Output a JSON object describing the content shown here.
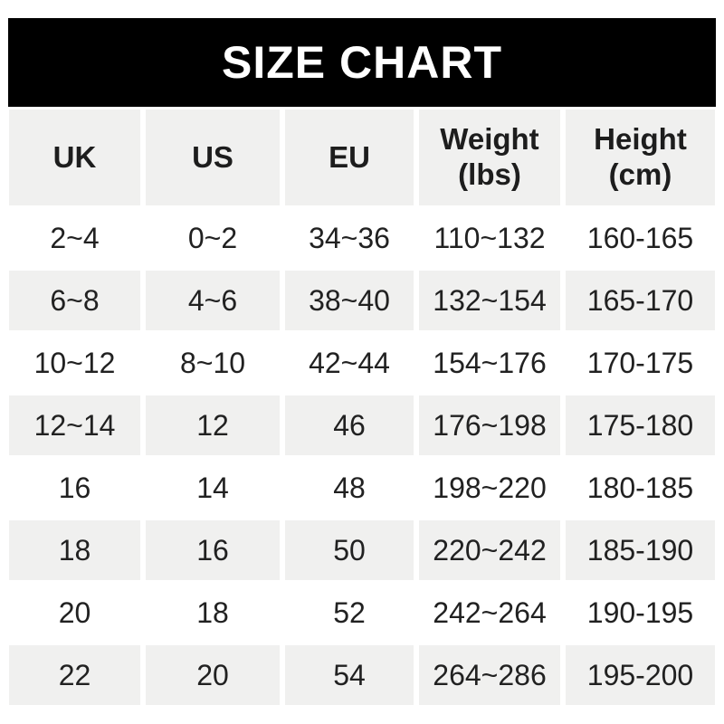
{
  "title": "SIZE CHART",
  "colors": {
    "banner_bg": "#000000",
    "banner_text": "#ffffff",
    "row_alt_bg": "#f0f0ef",
    "row_bg": "#ffffff",
    "text": "#212121",
    "page_bg": "#ffffff"
  },
  "table": {
    "headers": [
      {
        "key": "uk",
        "label": "UK",
        "unit": ""
      },
      {
        "key": "us",
        "label": "US",
        "unit": ""
      },
      {
        "key": "eu",
        "label": "EU",
        "unit": ""
      },
      {
        "key": "weight",
        "label": "Weight",
        "unit": "(lbs)"
      },
      {
        "key": "height",
        "label": "Height",
        "unit": "(cm)"
      }
    ],
    "rows": [
      [
        "2~4",
        "0~2",
        "34~36",
        "110~132",
        "160-165"
      ],
      [
        "6~8",
        "4~6",
        "38~40",
        "132~154",
        "165-170"
      ],
      [
        "10~12",
        "8~10",
        "42~44",
        "154~176",
        "170-175"
      ],
      [
        "12~14",
        "12",
        "46",
        "176~198",
        "175-180"
      ],
      [
        "16",
        "14",
        "48",
        "198~220",
        "180-185"
      ],
      [
        "18",
        "16",
        "50",
        "220~242",
        "185-190"
      ],
      [
        "20",
        "18",
        "52",
        "242~264",
        "190-195"
      ],
      [
        "22",
        "20",
        "54",
        "264~286",
        "195-200"
      ]
    ]
  },
  "chart_data": {
    "type": "table",
    "title": "SIZE CHART",
    "columns": [
      "UK",
      "US",
      "EU",
      "Weight (lbs)",
      "Height (cm)"
    ],
    "rows": [
      [
        "2~4",
        "0~2",
        "34~36",
        "110~132",
        "160-165"
      ],
      [
        "6~8",
        "4~6",
        "38~40",
        "132~154",
        "165-170"
      ],
      [
        "10~12",
        "8~10",
        "42~44",
        "154~176",
        "170-175"
      ],
      [
        "12~14",
        "12",
        "46",
        "176~198",
        "175-180"
      ],
      [
        "16",
        "14",
        "48",
        "198~220",
        "180-185"
      ],
      [
        "18",
        "16",
        "50",
        "220~242",
        "185-190"
      ],
      [
        "20",
        "18",
        "52",
        "242~264",
        "190-195"
      ],
      [
        "22",
        "20",
        "54",
        "264~286",
        "195-200"
      ]
    ],
    "layout_hints": {
      "header_background": "#f0f0ef",
      "alternating_row_background": "#f0f0ef",
      "title_banner_background": "#000000",
      "grid": "off"
    }
  }
}
